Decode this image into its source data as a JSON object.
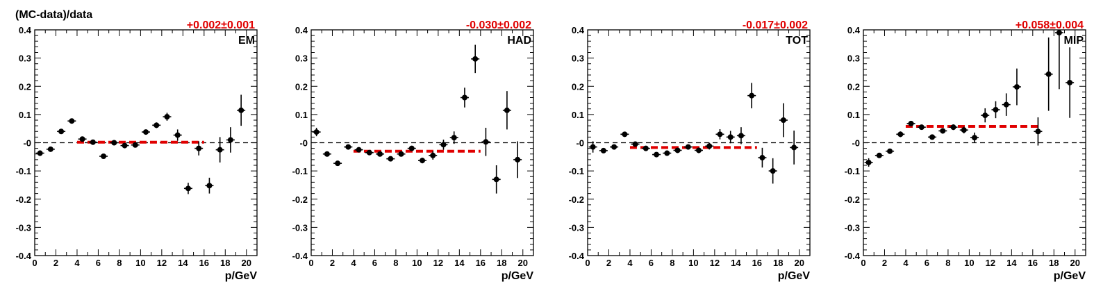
{
  "figure": {
    "ylabel": "(MC-data)/data"
  },
  "colors": {
    "points": "#000000",
    "fit": "#e00000",
    "zero": "#000000"
  },
  "chart_data": [
    {
      "type": "scatter",
      "label": "EM",
      "fit_label": "+0.002±0.001",
      "xlabel": "p/GeV",
      "ylabel": "(MC-data)/data",
      "xlim": [
        0,
        21
      ],
      "ylim": [
        -0.4,
        0.4
      ],
      "xticks": [
        0,
        2,
        4,
        6,
        8,
        10,
        12,
        14,
        16,
        18,
        20
      ],
      "yticks": [
        -0.4,
        -0.3,
        -0.2,
        -0.1,
        0,
        0.1,
        0.2,
        0.3,
        0.4
      ],
      "ytick_labels": [
        "-0.4",
        "-0.3",
        "-0.2",
        "-0.1",
        "-0",
        "0.1",
        "0.2",
        "0.3",
        "0.4"
      ],
      "zero_line": true,
      "fit": {
        "value": 0.002,
        "error": 0.001,
        "x_range": [
          4,
          16
        ]
      },
      "points": [
        {
          "x": 0.5,
          "y": -0.037,
          "err": 0.01
        },
        {
          "x": 1.5,
          "y": -0.023,
          "err": 0.008
        },
        {
          "x": 2.5,
          "y": 0.04,
          "err": 0.008
        },
        {
          "x": 3.5,
          "y": 0.077,
          "err": 0.008
        },
        {
          "x": 4.5,
          "y": 0.013,
          "err": 0.008
        },
        {
          "x": 5.5,
          "y": 0.002,
          "err": 0.008
        },
        {
          "x": 6.5,
          "y": -0.048,
          "err": 0.008
        },
        {
          "x": 7.5,
          "y": 0.0,
          "err": 0.008
        },
        {
          "x": 8.5,
          "y": -0.01,
          "err": 0.008
        },
        {
          "x": 9.5,
          "y": -0.008,
          "err": 0.008
        },
        {
          "x": 10.5,
          "y": 0.038,
          "err": 0.008
        },
        {
          "x": 11.5,
          "y": 0.062,
          "err": 0.01
        },
        {
          "x": 12.5,
          "y": 0.092,
          "err": 0.014
        },
        {
          "x": 13.5,
          "y": 0.027,
          "err": 0.02
        },
        {
          "x": 14.5,
          "y": -0.162,
          "err": 0.02
        },
        {
          "x": 15.5,
          "y": -0.02,
          "err": 0.025
        },
        {
          "x": 16.5,
          "y": -0.152,
          "err": 0.028
        },
        {
          "x": 17.5,
          "y": -0.025,
          "err": 0.045
        },
        {
          "x": 18.5,
          "y": 0.01,
          "err": 0.045
        },
        {
          "x": 19.5,
          "y": 0.115,
          "err": 0.055
        }
      ]
    },
    {
      "type": "scatter",
      "label": "HAD",
      "fit_label": "-0.030±0.002",
      "xlabel": "p/GeV",
      "ylabel": "",
      "xlim": [
        0,
        21
      ],
      "ylim": [
        -0.4,
        0.4
      ],
      "xticks": [
        0,
        2,
        4,
        6,
        8,
        10,
        12,
        14,
        16,
        18,
        20
      ],
      "yticks": [
        -0.4,
        -0.3,
        -0.2,
        -0.1,
        0,
        0.1,
        0.2,
        0.3,
        0.4
      ],
      "ytick_labels": [
        "-0.4",
        "-0.3",
        "-0.2",
        "-0.1",
        "-0",
        "0.1",
        "0.2",
        "0.3",
        "0.4"
      ],
      "zero_line": true,
      "fit": {
        "value": -0.03,
        "error": 0.002,
        "x_range": [
          4,
          16
        ]
      },
      "points": [
        {
          "x": 0.5,
          "y": 0.038,
          "err": 0.015
        },
        {
          "x": 1.5,
          "y": -0.04,
          "err": 0.008
        },
        {
          "x": 2.5,
          "y": -0.073,
          "err": 0.008
        },
        {
          "x": 3.5,
          "y": -0.015,
          "err": 0.008
        },
        {
          "x": 4.5,
          "y": -0.025,
          "err": 0.008
        },
        {
          "x": 5.5,
          "y": -0.035,
          "err": 0.008
        },
        {
          "x": 6.5,
          "y": -0.04,
          "err": 0.008
        },
        {
          "x": 7.5,
          "y": -0.057,
          "err": 0.008
        },
        {
          "x": 8.5,
          "y": -0.04,
          "err": 0.008
        },
        {
          "x": 9.5,
          "y": -0.02,
          "err": 0.008
        },
        {
          "x": 10.5,
          "y": -0.063,
          "err": 0.01
        },
        {
          "x": 11.5,
          "y": -0.045,
          "err": 0.015
        },
        {
          "x": 12.5,
          "y": -0.007,
          "err": 0.018
        },
        {
          "x": 13.5,
          "y": 0.018,
          "err": 0.022
        },
        {
          "x": 14.5,
          "y": 0.16,
          "err": 0.035
        },
        {
          "x": 15.5,
          "y": 0.297,
          "err": 0.05
        },
        {
          "x": 16.5,
          "y": 0.003,
          "err": 0.05
        },
        {
          "x": 17.5,
          "y": -0.13,
          "err": 0.05
        },
        {
          "x": 18.5,
          "y": 0.115,
          "err": 0.068
        },
        {
          "x": 19.5,
          "y": -0.06,
          "err": 0.065
        }
      ]
    },
    {
      "type": "scatter",
      "label": "TOT",
      "fit_label": "-0.017±0.002",
      "xlabel": "p/GeV",
      "ylabel": "",
      "xlim": [
        0,
        21
      ],
      "ylim": [
        -0.4,
        0.4
      ],
      "xticks": [
        0,
        2,
        4,
        6,
        8,
        10,
        12,
        14,
        16,
        18,
        20
      ],
      "yticks": [
        -0.4,
        -0.3,
        -0.2,
        -0.1,
        0,
        0.1,
        0.2,
        0.3,
        0.4
      ],
      "ytick_labels": [
        "-0.4",
        "-0.3",
        "-0.2",
        "-0.1",
        "-0",
        "0.1",
        "0.2",
        "0.3",
        "0.4"
      ],
      "zero_line": true,
      "fit": {
        "value": -0.017,
        "error": 0.002,
        "x_range": [
          4,
          16
        ]
      },
      "points": [
        {
          "x": 0.5,
          "y": -0.015,
          "err": 0.02
        },
        {
          "x": 1.5,
          "y": -0.028,
          "err": 0.008
        },
        {
          "x": 2.5,
          "y": -0.015,
          "err": 0.008
        },
        {
          "x": 3.5,
          "y": 0.03,
          "err": 0.008
        },
        {
          "x": 4.5,
          "y": -0.005,
          "err": 0.008
        },
        {
          "x": 5.5,
          "y": -0.02,
          "err": 0.008
        },
        {
          "x": 6.5,
          "y": -0.042,
          "err": 0.008
        },
        {
          "x": 7.5,
          "y": -0.037,
          "err": 0.008
        },
        {
          "x": 8.5,
          "y": -0.027,
          "err": 0.008
        },
        {
          "x": 9.5,
          "y": -0.015,
          "err": 0.008
        },
        {
          "x": 10.5,
          "y": -0.027,
          "err": 0.01
        },
        {
          "x": 11.5,
          "y": -0.012,
          "err": 0.012
        },
        {
          "x": 12.5,
          "y": 0.03,
          "err": 0.018
        },
        {
          "x": 13.5,
          "y": 0.02,
          "err": 0.022
        },
        {
          "x": 14.5,
          "y": 0.025,
          "err": 0.03
        },
        {
          "x": 15.5,
          "y": 0.167,
          "err": 0.045
        },
        {
          "x": 16.5,
          "y": -0.053,
          "err": 0.035
        },
        {
          "x": 17.5,
          "y": -0.1,
          "err": 0.045
        },
        {
          "x": 18.5,
          "y": 0.08,
          "err": 0.06
        },
        {
          "x": 19.5,
          "y": -0.017,
          "err": 0.06
        }
      ]
    },
    {
      "type": "scatter",
      "label": "MIP",
      "fit_label": "+0.058±0.004",
      "xlabel": "p/GeV",
      "ylabel": "",
      "xlim": [
        0,
        21
      ],
      "ylim": [
        -0.4,
        0.4
      ],
      "xticks": [
        0,
        2,
        4,
        6,
        8,
        10,
        12,
        14,
        16,
        18,
        20
      ],
      "yticks": [
        -0.4,
        -0.3,
        -0.2,
        -0.1,
        0,
        0.1,
        0.2,
        0.3,
        0.4
      ],
      "ytick_labels": [
        "-0.4",
        "-0.3",
        "-0.2",
        "-0.1",
        "-0",
        "0.1",
        "0.2",
        "0.3",
        "0.4"
      ],
      "zero_line": true,
      "fit": {
        "value": 0.058,
        "error": 0.004,
        "x_range": [
          4,
          16.5
        ]
      },
      "points": [
        {
          "x": 0.5,
          "y": -0.07,
          "err": 0.015
        },
        {
          "x": 1.5,
          "y": -0.045,
          "err": 0.008
        },
        {
          "x": 2.5,
          "y": -0.03,
          "err": 0.008
        },
        {
          "x": 3.5,
          "y": 0.03,
          "err": 0.01
        },
        {
          "x": 4.5,
          "y": 0.068,
          "err": 0.008
        },
        {
          "x": 5.5,
          "y": 0.055,
          "err": 0.008
        },
        {
          "x": 6.5,
          "y": 0.02,
          "err": 0.008
        },
        {
          "x": 7.5,
          "y": 0.042,
          "err": 0.01
        },
        {
          "x": 8.5,
          "y": 0.055,
          "err": 0.01
        },
        {
          "x": 9.5,
          "y": 0.045,
          "err": 0.012
        },
        {
          "x": 10.5,
          "y": 0.018,
          "err": 0.018
        },
        {
          "x": 11.5,
          "y": 0.097,
          "err": 0.025
        },
        {
          "x": 12.5,
          "y": 0.117,
          "err": 0.03
        },
        {
          "x": 13.5,
          "y": 0.135,
          "err": 0.04
        },
        {
          "x": 14.5,
          "y": 0.198,
          "err": 0.065
        },
        {
          "x": 16.5,
          "y": 0.04,
          "err": 0.05
        },
        {
          "x": 17.5,
          "y": 0.243,
          "err": 0.13
        },
        {
          "x": 18.5,
          "y": 0.39,
          "err": 0.2
        },
        {
          "x": 19.5,
          "y": 0.213,
          "err": 0.125
        }
      ]
    }
  ]
}
